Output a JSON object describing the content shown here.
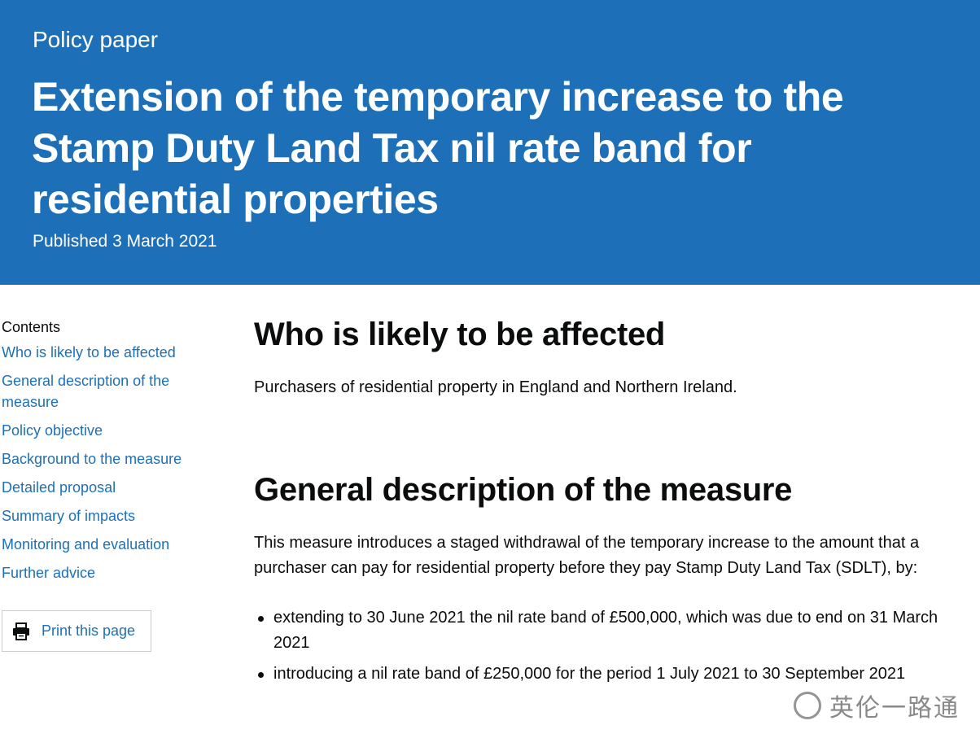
{
  "header": {
    "doc_type": "Policy paper",
    "title": "Extension of the temporary increase to the Stamp Duty Land Tax nil rate band for residential properties",
    "published": "Published 3 March 2021"
  },
  "sidebar": {
    "contents_heading": "Contents",
    "items": [
      "Who is likely to be affected",
      "General description of the measure",
      "Policy objective",
      "Background to the measure",
      "Detailed proposal",
      "Summary of impacts",
      "Monitoring and evaluation",
      "Further advice"
    ],
    "print_label": "Print this page",
    "print_icon": "printer-icon"
  },
  "main": {
    "section1": {
      "heading": "Who is likely to be affected",
      "body": "Purchasers of residential property in England and Northern Ireland."
    },
    "section2": {
      "heading": "General description of the measure",
      "body": "This measure introduces a staged withdrawal of the temporary increase to the amount that a purchaser can pay for residential property before they pay Stamp Duty Land Tax (SDLT), by:",
      "bullets": [
        "extending to 30 June 2021 the nil rate band of £500,000, which was due to end on 31 March 2021",
        "introducing a nil rate band of £250,000 for the period 1 July 2021 to 30 September 2021"
      ]
    }
  },
  "watermark": {
    "text": "英伦一路通"
  },
  "colors": {
    "masthead": "#1d70b8",
    "link": "#1d70b8",
    "text": "#0b0c0c"
  }
}
